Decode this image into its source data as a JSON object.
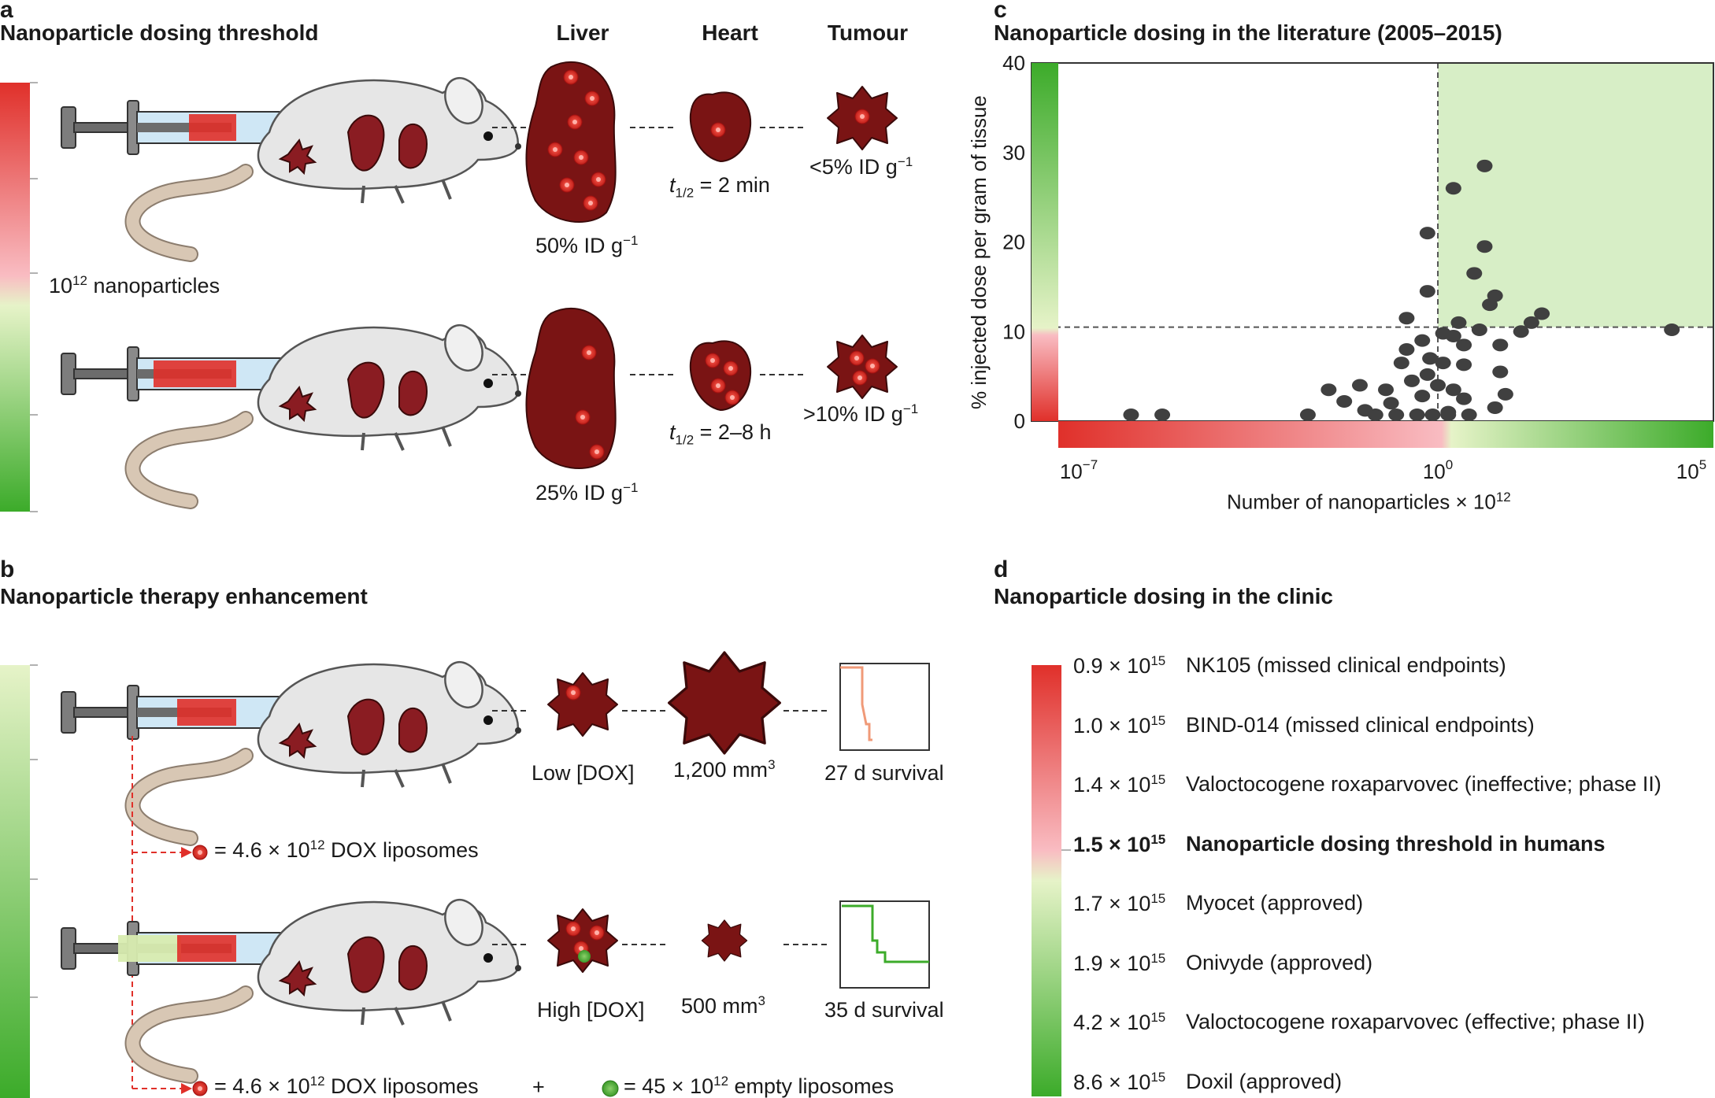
{
  "panel_a": {
    "letter": "a",
    "title": "Nanoparticle dosing threshold",
    "organs": [
      "Liver",
      "Heart",
      "Tumour"
    ],
    "dose_label": "10",
    "dose_label_exp": "12",
    "dose_label_suffix": " nanoparticles",
    "row1": {
      "liver": "50% ID g",
      "liver_exp": "−1",
      "heart_t": "t",
      "heart_sub": "1/2",
      "heart_val": " = 2 min",
      "tumour": "<5% ID g",
      "tumour_exp": "−1"
    },
    "row2": {
      "liver": "25% ID g",
      "liver_exp": "−1",
      "heart_t": "t",
      "heart_sub": "1/2",
      "heart_val": " = 2–8 h",
      "tumour": ">10% ID g",
      "tumour_exp": "−1"
    }
  },
  "panel_b": {
    "letter": "b",
    "title": "Nanoparticle therapy enhancement",
    "row1": {
      "dox": "Low [DOX]",
      "volume": "1,200 mm",
      "volume_exp": "3",
      "survival": "27 d survival"
    },
    "row2": {
      "dox": "High [DOX]",
      "volume": "500 mm",
      "volume_exp": "3",
      "survival": "35 d survival"
    },
    "legend1": {
      "prefix": "= 4.6 × 10",
      "exp": "12",
      "suffix": " DOX liposomes"
    },
    "legend2a": {
      "prefix": "= 4.6 × 10",
      "exp": "12",
      "suffix": " DOX liposomes"
    },
    "plus": "+",
    "legend2b": {
      "prefix": "= 45 × 10",
      "exp": "12",
      "suffix": " empty liposomes"
    }
  },
  "panel_c": {
    "letter": "c",
    "title": "Nanoparticle dosing in the literature (2005–2015)",
    "chart_data": {
      "type": "scatter",
      "title": "Nanoparticle dosing in the literature (2005–2015)",
      "xlabel": "Number of nanoparticles × 10",
      "xlabel_exp": "12",
      "ylabel": "% injected dose per gram of tissue",
      "xscale": "log",
      "xlim_log10": [
        -7.3,
        5.3
      ],
      "ylim": [
        0,
        40
      ],
      "yticks": [
        "0",
        "10",
        "20",
        "30",
        "40"
      ],
      "xtick_base": "10",
      "xticks": [
        {
          "exp": "−7",
          "log": -7
        },
        {
          "exp": "0",
          "log": 0
        },
        {
          "exp": "5",
          "log": 5
        }
      ],
      "threshold_x_log10": 0,
      "threshold_y": 10.5,
      "points_log10x_y": [
        [
          -5.9,
          0
        ],
        [
          -5.3,
          0.7
        ],
        [
          -2.5,
          0.2
        ],
        [
          -2.1,
          3.5
        ],
        [
          -1.8,
          2.2
        ],
        [
          -1.5,
          4
        ],
        [
          -1.4,
          1.2
        ],
        [
          -1.2,
          0.5
        ],
        [
          -1.0,
          3.5
        ],
        [
          -0.9,
          2
        ],
        [
          -0.8,
          0.3
        ],
        [
          -0.7,
          6.5
        ],
        [
          -0.6,
          8
        ],
        [
          -0.5,
          4.5
        ],
        [
          -0.4,
          0
        ],
        [
          -0.3,
          9
        ],
        [
          -0.3,
          2.8
        ],
        [
          -0.2,
          5.2
        ],
        [
          -0.1,
          0.5
        ],
        [
          -0.15,
          7
        ],
        [
          -0.2,
          14.5
        ],
        [
          -0.2,
          21
        ],
        [
          0.1,
          9.8
        ],
        [
          0.1,
          6.5
        ],
        [
          0.0,
          4
        ],
        [
          0.2,
          1
        ],
        [
          0.3,
          9.5
        ],
        [
          0.3,
          3.5
        ],
        [
          0.3,
          26
        ],
        [
          0.5,
          8.5
        ],
        [
          0.5,
          6.3
        ],
        [
          0.5,
          2.5
        ],
        [
          0.6,
          0.6
        ],
        [
          0.7,
          16.5
        ],
        [
          0.9,
          19.5
        ],
        [
          0.9,
          28.5
        ],
        [
          1.0,
          13
        ],
        [
          1.1,
          14
        ],
        [
          1.2,
          8.5
        ],
        [
          1.2,
          5.5
        ],
        [
          1.3,
          3
        ],
        [
          1.1,
          1.5
        ],
        [
          1.6,
          10
        ],
        [
          1.8,
          11
        ],
        [
          2.0,
          12
        ],
        [
          0.8,
          10.2
        ],
        [
          0.4,
          11
        ],
        [
          -0.6,
          11.5
        ],
        [
          4.5,
          10.2
        ],
        [
          0.2,
          0
        ]
      ]
    }
  },
  "panel_d": {
    "letter": "d",
    "title": "Nanoparticle dosing in the clinic",
    "entries": [
      {
        "value": "0.9 × 10",
        "exp": "15",
        "label": "NK105 (missed clinical endpoints)",
        "bold": false
      },
      {
        "value": "1.0 × 10",
        "exp": "15",
        "label": "BIND-014 (missed clinical endpoints)",
        "bold": false
      },
      {
        "value": "1.4 × 10",
        "exp": "15",
        "label": "Valoctocogene roxaparvovec (ineffective; phase II)",
        "bold": false
      },
      {
        "value": "1.5 × 10",
        "exp": "15",
        "label": "Nanoparticle dosing threshold in humans",
        "bold": true
      },
      {
        "value": "1.7 × 10",
        "exp": "15",
        "label": "Myocet (approved)",
        "bold": false
      },
      {
        "value": "1.9 × 10",
        "exp": "15",
        "label": "Onivyde (approved)",
        "bold": false
      },
      {
        "value": "4.2 × 10",
        "exp": "15",
        "label": "Valoctocogene roxaparvovec (effective; phase II)",
        "bold": false
      },
      {
        "value": "8.6 × 10",
        "exp": "15",
        "label": "Doxil (approved)",
        "bold": false
      }
    ]
  },
  "colors": {
    "red": "#e0302a",
    "pink": "#f9bcc2",
    "lightgreen": "#dcefbd",
    "green": "#3cab2a",
    "organ": "#7a1414",
    "dot": "#404040"
  }
}
